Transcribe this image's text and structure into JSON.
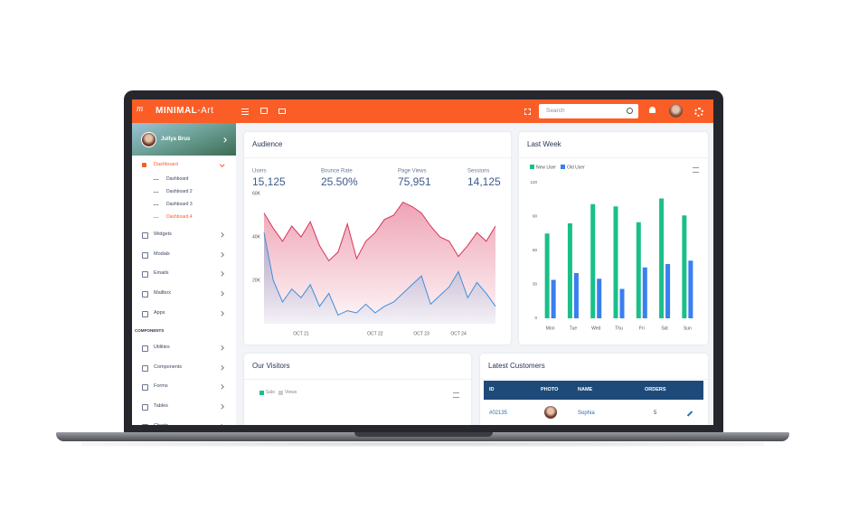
{
  "header": {
    "logo": "MINIMAL",
    "logo_suffix": "-Art",
    "search_placeholder": "Search"
  },
  "sidebar": {
    "user": "Jullya Brus",
    "active": "Dashboard",
    "submenu": [
      "Dashboard",
      "Dashboard 2",
      "Dashboard 3",
      "Dashboard 4"
    ],
    "menu": [
      "Widgets",
      "Modals",
      "Emails",
      "Mailbox",
      "Apps"
    ],
    "section": "COMPONENTS",
    "components": [
      "Utilities",
      "Components",
      "Forms",
      "Tables",
      "Charts"
    ]
  },
  "audience": {
    "title": "Audience",
    "stats": [
      {
        "label": "Users",
        "value": "15,125"
      },
      {
        "label": "Bounce Rate",
        "value": "25.50%"
      },
      {
        "label": "Page Views",
        "value": "75,951"
      },
      {
        "label": "Sessions",
        "value": "14,125"
      }
    ],
    "chart": {
      "type": "area",
      "x": [
        0,
        1,
        2,
        3,
        4,
        5,
        6,
        7,
        8,
        9,
        10,
        11,
        12,
        13,
        14,
        15,
        16,
        17,
        18,
        19,
        20,
        21,
        22,
        23,
        24,
        25
      ],
      "series": [
        {
          "color": "#d9335a",
          "values": [
            51000,
            44000,
            38000,
            45000,
            40000,
            47000,
            36000,
            29000,
            33000,
            46000,
            30000,
            38000,
            42000,
            48000,
            50000,
            56000,
            54000,
            51000,
            45000,
            40000,
            38000,
            31000,
            36000,
            42000,
            38000,
            45000
          ]
        },
        {
          "color": "#3f8fd8",
          "values": [
            42000,
            20000,
            10000,
            16000,
            12000,
            18000,
            8000,
            14000,
            4000,
            6000,
            5000,
            9000,
            5000,
            8000,
            10000,
            14000,
            18000,
            22000,
            9000,
            13000,
            17000,
            24000,
            12000,
            19000,
            14000,
            8000
          ]
        }
      ],
      "xlim": [
        0,
        25
      ],
      "xticks": [
        {
          "value": 4,
          "label": "OCT 21"
        },
        {
          "value": 12,
          "label": "OCT 22"
        },
        {
          "value": 17,
          "label": "OCT 23"
        },
        {
          "value": 21,
          "label": "OCT 24"
        }
      ],
      "ylim": [
        0,
        60000
      ],
      "yticks": [
        {
          "value": 20000,
          "label": "20K"
        },
        {
          "value": 40000,
          "label": "40K"
        },
        {
          "value": 60000,
          "label": "60K"
        }
      ]
    }
  },
  "last_week": {
    "title": "Last Week",
    "chart": {
      "type": "bar",
      "categories": [
        "Mon",
        "Tue",
        "Wed",
        "Thu",
        "Fri",
        "Sat",
        "Sun"
      ],
      "series": [
        {
          "name": "New User",
          "color": "#19c08a",
          "values": [
            75,
            84,
            101,
            99,
            85,
            106,
            91
          ]
        },
        {
          "name": "Old User",
          "color": "#3a7ff0",
          "values": [
            34,
            40,
            35,
            26,
            45,
            48,
            51
          ]
        }
      ],
      "ylim": [
        0,
        120
      ],
      "yticks": [
        0,
        30,
        60,
        90,
        120
      ],
      "legend": "top-left"
    }
  },
  "visitors": {
    "title": "Our Visitors",
    "legend": [
      "Sale",
      "Views"
    ]
  },
  "customers": {
    "title": "Latest Customers",
    "columns": [
      "ID",
      "PHOTO",
      "NAME",
      "ORDERS"
    ],
    "rows": [
      {
        "id": "#02135",
        "name": "Sophia",
        "orders": 5
      }
    ]
  }
}
